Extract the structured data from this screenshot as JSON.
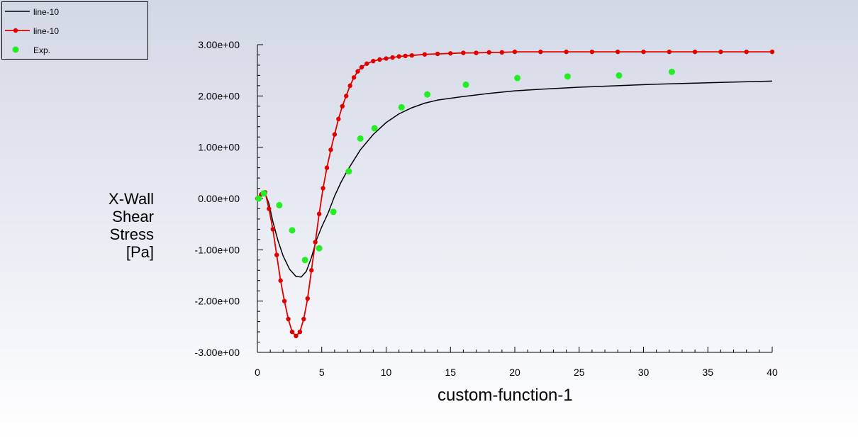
{
  "chart_data": {
    "type": "line",
    "xlabel": "custom-function-1",
    "ylabel_lines": [
      "X-Wall",
      "Shear",
      "Stress",
      "[Pa]"
    ],
    "xlim": [
      0,
      40
    ],
    "ylim": [
      -3,
      3
    ],
    "x_ticks": [
      "0",
      "5",
      "10",
      "15",
      "20",
      "25",
      "30",
      "35",
      "40"
    ],
    "y_ticks": [
      "-3.00e+00",
      "-2.00e+00",
      "-1.00e+00",
      "0.00e+00",
      "1.00e+00",
      "2.00e+00",
      "3.00e+00"
    ],
    "legend_position": "top-left",
    "grid": false,
    "series": [
      {
        "name": "line-10",
        "style": "line",
        "color": "#000000",
        "x": [
          0,
          0.3,
          0.6,
          0.9,
          1.2,
          1.6,
          2.0,
          2.5,
          3.0,
          3.4,
          3.8,
          4.2,
          4.6,
          5.0,
          5.5,
          6.0,
          6.5,
          7.0,
          7.5,
          8.0,
          9.0,
          10.0,
          11.0,
          12.0,
          13.0,
          14.0,
          16.0,
          18.0,
          20.0,
          22.0,
          25.0,
          28.0,
          31.0,
          34.0,
          37.0,
          40.0
        ],
        "y": [
          0.0,
          0.12,
          0.1,
          -0.1,
          -0.45,
          -0.82,
          -1.12,
          -1.38,
          -1.52,
          -1.53,
          -1.42,
          -1.15,
          -0.8,
          -0.55,
          -0.28,
          0.05,
          0.32,
          0.55,
          0.75,
          0.95,
          1.25,
          1.48,
          1.65,
          1.77,
          1.86,
          1.92,
          1.99,
          2.05,
          2.1,
          2.13,
          2.17,
          2.2,
          2.23,
          2.25,
          2.27,
          2.29
        ]
      },
      {
        "name": "line-10",
        "style": "line-markers",
        "color": "#e00000",
        "x": [
          0,
          0.3,
          0.6,
          0.9,
          1.2,
          1.5,
          1.8,
          2.1,
          2.4,
          2.7,
          3.0,
          3.3,
          3.6,
          3.9,
          4.2,
          4.5,
          4.8,
          5.1,
          5.4,
          5.7,
          6.0,
          6.3,
          6.6,
          6.9,
          7.2,
          7.5,
          7.8,
          8.1,
          8.5,
          9.0,
          9.5,
          10.0,
          10.5,
          11.0,
          11.5,
          12.0,
          13.0,
          14.0,
          15.0,
          16.0,
          17.0,
          18.0,
          19.0,
          20.0,
          22.0,
          24.0,
          26.0,
          28.0,
          30.0,
          32.0,
          34.0,
          36.0,
          38.0,
          40.0
        ],
        "y": [
          0.0,
          0.08,
          0.12,
          -0.2,
          -0.6,
          -1.1,
          -1.6,
          -2.0,
          -2.35,
          -2.6,
          -2.68,
          -2.6,
          -2.35,
          -1.95,
          -1.4,
          -0.85,
          -0.3,
          0.2,
          0.6,
          0.95,
          1.25,
          1.55,
          1.8,
          2.0,
          2.2,
          2.36,
          2.48,
          2.56,
          2.63,
          2.68,
          2.71,
          2.73,
          2.75,
          2.77,
          2.78,
          2.79,
          2.81,
          2.82,
          2.83,
          2.84,
          2.84,
          2.85,
          2.85,
          2.86,
          2.86,
          2.86,
          2.86,
          2.86,
          2.86,
          2.86,
          2.86,
          2.86,
          2.86,
          2.86
        ]
      },
      {
        "name": "Exp.",
        "style": "markers",
        "color": "#22ee22",
        "x": [
          0.1,
          0.5,
          1.7,
          2.7,
          3.7,
          4.8,
          5.9,
          7.1,
          8.0,
          9.1,
          11.2,
          13.2,
          16.2,
          20.2,
          24.1,
          28.1,
          32.2
        ],
        "y": [
          0.0,
          0.1,
          -0.13,
          -0.62,
          -1.2,
          -0.97,
          -0.26,
          0.53,
          1.17,
          1.37,
          1.78,
          2.03,
          2.22,
          2.35,
          2.38,
          2.4,
          2.47
        ]
      }
    ]
  }
}
